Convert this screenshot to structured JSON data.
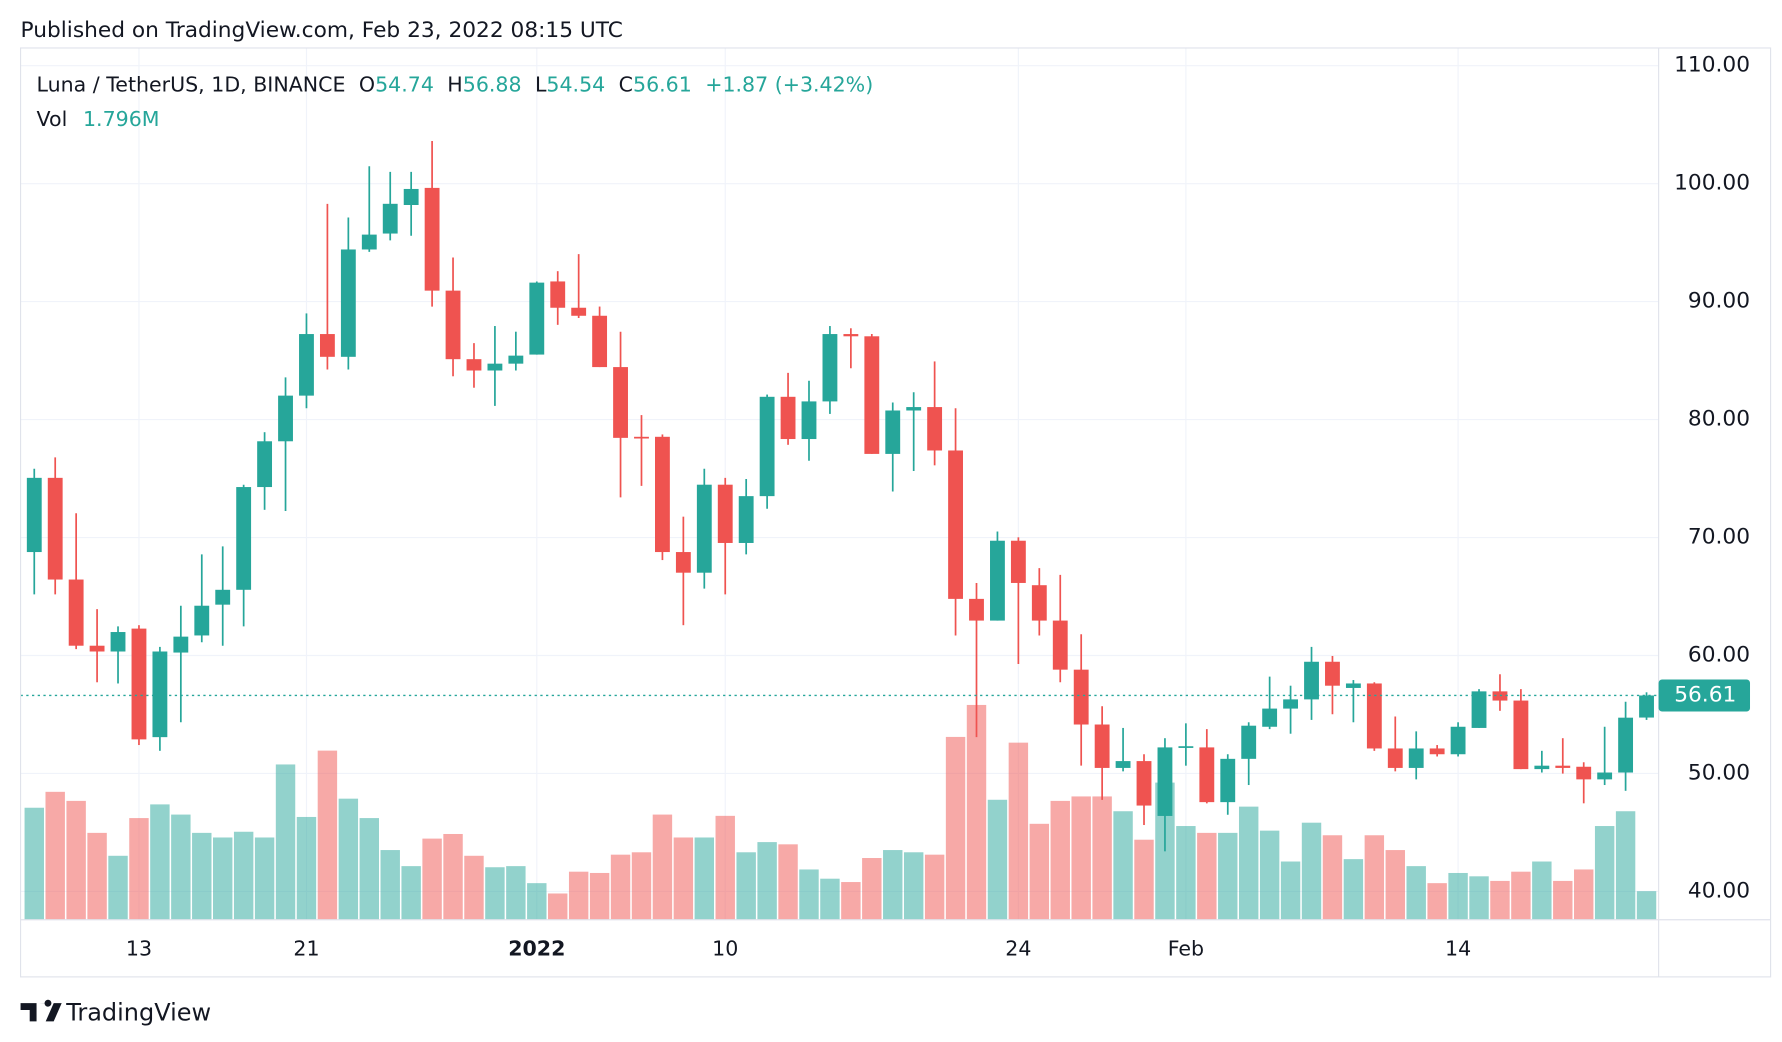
{
  "header": {
    "published": "Published on TradingView.com, Feb 23, 2022 08:15 UTC"
  },
  "legend": {
    "symbol": "Luna / TetherUS, 1D, BINANCE",
    "open_label": "O",
    "high_label": "H",
    "low_label": "L",
    "close_label": "C",
    "change": "+1.87 (+3.42%)",
    "vol_label": "Vol",
    "vol_value": "1.796M"
  },
  "footer": {
    "brand": "TradingView"
  },
  "chart_data": {
    "type": "candlestick",
    "categories": [
      null,
      null,
      null,
      null,
      null,
      "13",
      null,
      null,
      null,
      null,
      null,
      null,
      null,
      "21",
      null,
      null,
      null,
      null,
      null,
      null,
      null,
      null,
      null,
      null,
      "2022",
      null,
      null,
      null,
      null,
      null,
      null,
      null,
      null,
      "10",
      null,
      null,
      null,
      null,
      null,
      null,
      null,
      null,
      null,
      null,
      null,
      null,
      null,
      "24",
      null,
      null,
      null,
      null,
      null,
      null,
      null,
      "Feb",
      null,
      null,
      null,
      null,
      null,
      null,
      null,
      null,
      null,
      null,
      null,
      null,
      "14",
      null,
      null,
      null,
      null,
      null,
      null,
      null,
      null,
      null
    ],
    "open": [
      68.77,
      75.06,
      66.44,
      60.83,
      60.34,
      62.28,
      53.08,
      60.25,
      61.7,
      64.31,
      65.57,
      74.28,
      78.16,
      82.03,
      87.25,
      85.32,
      94.42,
      95.77,
      98.19,
      99.64,
      90.93,
      85.12,
      84.16,
      84.74,
      85.51,
      91.71,
      89.48,
      88.8,
      84.45,
      78.54,
      78.54,
      68.77,
      67.02,
      74.48,
      69.54,
      73.51,
      81.93,
      78.35,
      81.54,
      87.25,
      87.06,
      77.09,
      80.77,
      81.06,
      77.38,
      64.8,
      62.96,
      69.73,
      65.96,
      62.96,
      58.8,
      54.15,
      50.47,
      51.05,
      46.4,
      52.21,
      52.21,
      47.57,
      51.24,
      53.96,
      55.5,
      56.28,
      59.47,
      57.25,
      57.63,
      52.12,
      50.47,
      52.12,
      51.63,
      53.86,
      56.96,
      56.18,
      50.37,
      50.66,
      50.57,
      49.5,
      50.08,
      54.74
    ],
    "high": [
      75.83,
      76.8,
      72.06,
      63.93,
      62.47,
      62.57,
      60.73,
      64.22,
      68.57,
      69.25,
      74.48,
      78.93,
      83.58,
      89.0,
      98.29,
      97.13,
      101.48,
      101.0,
      101.0,
      103.61,
      93.74,
      86.48,
      87.93,
      87.45,
      91.71,
      92.58,
      94.03,
      89.58,
      87.45,
      80.38,
      78.74,
      71.77,
      75.83,
      75.06,
      74.96,
      82.12,
      83.96,
      83.29,
      87.93,
      87.74,
      87.25,
      81.45,
      82.32,
      84.93,
      80.96,
      66.15,
      70.51,
      70.02,
      67.41,
      66.83,
      61.8,
      55.7,
      53.86,
      51.63,
      52.99,
      54.25,
      53.76,
      51.63,
      54.34,
      58.21,
      57.44,
      60.73,
      59.96,
      57.92,
      57.73,
      54.83,
      53.57,
      52.41,
      54.34,
      57.15,
      58.41,
      57.15,
      51.92,
      52.99,
      50.95,
      53.96,
      56.08,
      56.88
    ],
    "low": [
      65.18,
      65.18,
      60.54,
      57.73,
      57.63,
      52.41,
      51.92,
      54.34,
      61.12,
      60.83,
      62.47,
      72.35,
      72.25,
      80.96,
      84.25,
      84.25,
      94.22,
      95.19,
      95.58,
      89.58,
      83.67,
      82.7,
      81.16,
      84.16,
      85.51,
      88.03,
      88.61,
      84.45,
      73.41,
      74.38,
      68.09,
      62.57,
      65.67,
      65.18,
      68.57,
      72.44,
      77.86,
      76.51,
      80.48,
      84.35,
      77.09,
      73.9,
      75.64,
      76.12,
      61.7,
      53.08,
      62.96,
      59.28,
      61.7,
      57.73,
      50.66,
      47.76,
      50.18,
      45.63,
      43.4,
      50.66,
      47.47,
      46.5,
      49.02,
      53.76,
      53.37,
      54.54,
      55.02,
      54.34,
      51.92,
      50.18,
      49.5,
      51.44,
      51.44,
      53.86,
      55.31,
      50.37,
      50.08,
      49.99,
      47.47,
      49.02,
      48.53,
      54.54
    ],
    "close": [
      75.06,
      66.44,
      60.83,
      60.34,
      61.99,
      52.89,
      60.34,
      61.6,
      64.22,
      65.57,
      74.28,
      78.16,
      82.03,
      87.25,
      85.32,
      94.42,
      95.68,
      98.29,
      99.55,
      90.93,
      85.12,
      84.16,
      84.74,
      85.42,
      91.61,
      89.48,
      88.8,
      84.45,
      78.45,
      78.45,
      68.77,
      67.02,
      74.48,
      69.54,
      73.51,
      81.93,
      78.35,
      81.54,
      87.25,
      87.06,
      77.09,
      80.77,
      81.06,
      77.38,
      64.8,
      62.96,
      69.73,
      66.15,
      62.96,
      58.8,
      54.15,
      50.47,
      51.05,
      47.28,
      52.21,
      52.31,
      47.57,
      51.24,
      54.05,
      55.5,
      56.28,
      59.47,
      57.44,
      57.63,
      52.12,
      50.47,
      52.12,
      51.63,
      53.96,
      56.96,
      56.18,
      50.37,
      50.66,
      50.47,
      49.5,
      50.08,
      54.73,
      56.61
    ],
    "volume": [
      7.04,
      8.04,
      7.47,
      5.46,
      4.02,
      6.39,
      7.25,
      6.61,
      5.46,
      5.17,
      5.53,
      5.17,
      9.76,
      6.46,
      10.63,
      7.61,
      6.39,
      4.38,
      3.37,
      5.1,
      5.39,
      4.02,
      3.3,
      3.37,
      2.3,
      1.65,
      3.02,
      2.94,
      4.09,
      4.24,
      6.61,
      5.17,
      5.17,
      6.53,
      4.24,
      4.88,
      4.74,
      3.16,
      2.58,
      2.37,
      3.88,
      4.38,
      4.24,
      4.09,
      11.49,
      13.5,
      7.54,
      11.13,
      6.03,
      7.47,
      7.75,
      7.75,
      6.82,
      5.03,
      8.62,
      5.89,
      5.46,
      5.46,
      7.11,
      5.6,
      3.66,
      6.1,
      5.31,
      3.81,
      5.31,
      4.38,
      3.37,
      2.3,
      2.94,
      2.73,
      2.44,
      3.02,
      3.66,
      2.44,
      3.16,
      5.89,
      6.82,
      1.796
    ],
    "ylim": [
      37.6,
      111.5
    ],
    "yticks": [
      {
        "value": 40,
        "label": "40.00"
      },
      {
        "value": 50,
        "label": "50.00"
      },
      {
        "value": 60,
        "label": "60.00"
      },
      {
        "value": 70,
        "label": "70.00"
      },
      {
        "value": 80,
        "label": "80.00"
      },
      {
        "value": 90,
        "label": "90.00"
      },
      {
        "value": 100,
        "label": "100.00"
      },
      {
        "value": 110,
        "label": "110.00"
      }
    ],
    "grid": true,
    "up_color": "#26a69a",
    "down_color": "#ef5350"
  }
}
